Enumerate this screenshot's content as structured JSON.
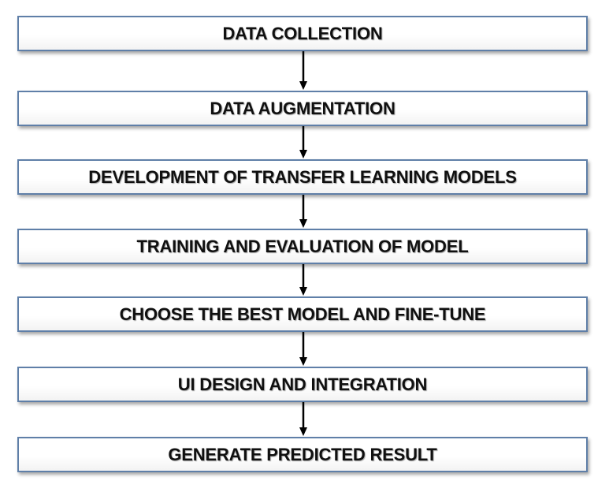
{
  "flowchart": {
    "steps": [
      {
        "label": "DATA COLLECTION"
      },
      {
        "label": "DATA AUGMENTATION"
      },
      {
        "label": "DEVELOPMENT OF TRANSFER LEARNING MODELS"
      },
      {
        "label": "TRAINING AND EVALUATION OF MODEL"
      },
      {
        "label": "CHOOSE THE BEST MODEL AND FINE-TUNE"
      },
      {
        "label": "UI DESIGN AND INTEGRATION"
      },
      {
        "label": "GENERATE PREDICTED RESULT"
      }
    ],
    "colors": {
      "box_border": "#5f7fa8",
      "box_fill": "#ffffff",
      "text": "#101010",
      "arrow": "#000000"
    }
  }
}
